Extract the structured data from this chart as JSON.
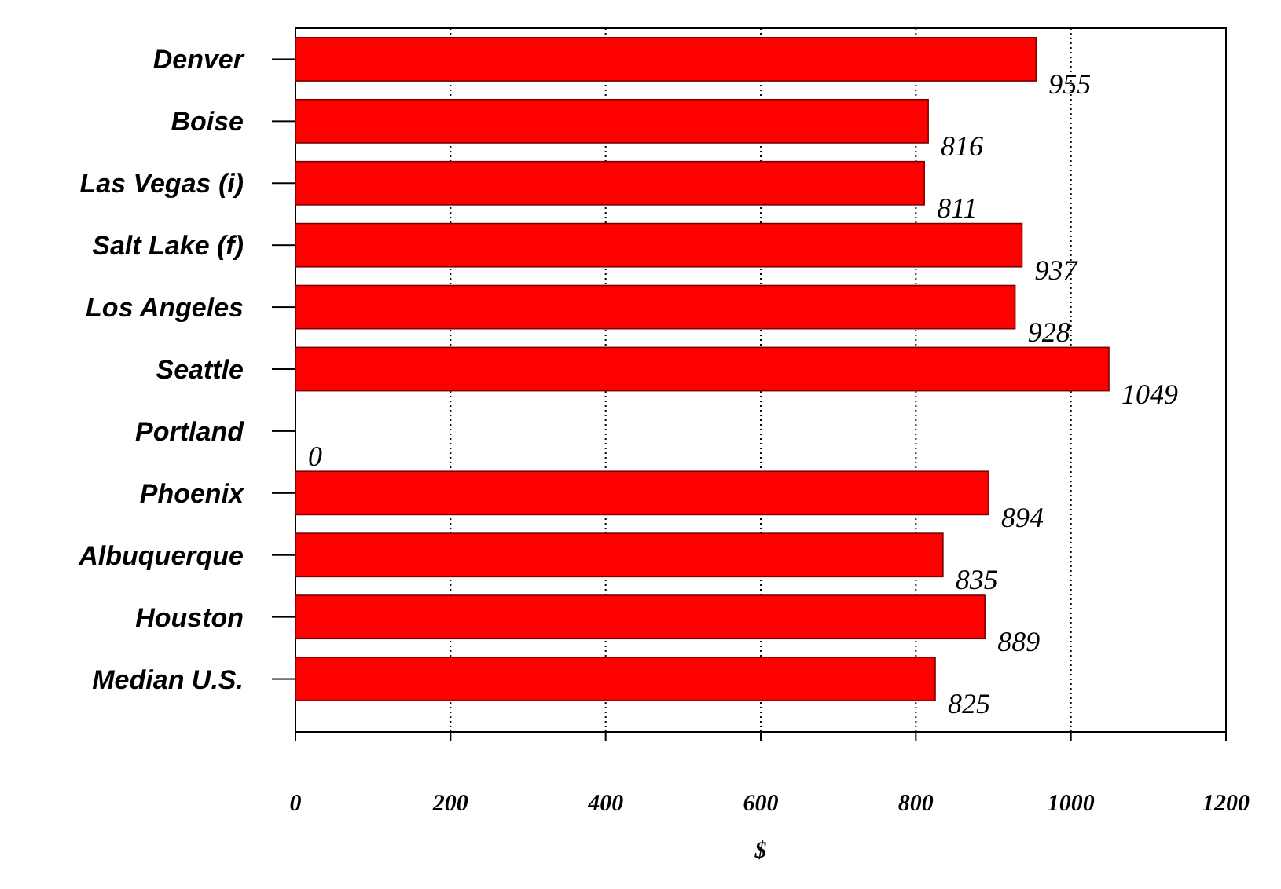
{
  "chart_data": {
    "type": "bar",
    "orientation": "horizontal",
    "categories": [
      "Denver",
      "Boise",
      "Las Vegas (i)",
      "Salt Lake (f)",
      "Los Angeles",
      "Seattle",
      "Portland",
      "Phoenix",
      "Albuquerque",
      "Houston",
      "Median U.S."
    ],
    "values": [
      955,
      816,
      811,
      937,
      928,
      1049,
      0,
      894,
      835,
      889,
      825
    ],
    "color": "#ff0000",
    "xlim": [
      0,
      1200
    ],
    "xticks": [
      0,
      200,
      400,
      600,
      800,
      1000,
      1200
    ],
    "xlabel": "$",
    "grid": "x",
    "data_labels": true
  }
}
